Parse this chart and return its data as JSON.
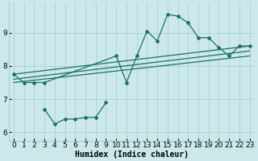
{
  "xlabel": "Humidex (Indice chaleur)",
  "background_color": "#cce8ea",
  "grid_color": "#9ecdd0",
  "line_color": "#1a7068",
  "xlim": [
    -0.5,
    23.5
  ],
  "ylim": [
    5.75,
    9.9
  ],
  "xticks": [
    0,
    1,
    2,
    3,
    4,
    5,
    6,
    7,
    8,
    9,
    10,
    11,
    12,
    13,
    14,
    15,
    16,
    17,
    18,
    19,
    20,
    21,
    22,
    23
  ],
  "yticks": [
    6,
    7,
    8,
    9
  ],
  "series1_x": [
    0,
    1,
    2,
    3,
    10,
    11,
    12,
    13,
    14,
    15,
    16,
    17,
    18,
    19,
    20,
    21,
    22,
    23
  ],
  "series1_y": [
    7.75,
    7.5,
    7.5,
    7.5,
    8.3,
    7.5,
    8.3,
    9.05,
    8.75,
    9.55,
    9.5,
    9.3,
    8.85,
    8.85,
    8.55,
    8.3,
    8.6,
    8.6
  ],
  "series2_x": [
    3,
    4,
    5,
    6,
    7,
    8,
    9
  ],
  "series2_y": [
    6.7,
    6.25,
    6.4,
    6.4,
    6.45,
    6.45,
    6.9
  ],
  "trend1_x": [
    0,
    23
  ],
  "trend1_y": [
    7.75,
    8.6
  ],
  "trend2_x": [
    0,
    23
  ],
  "trend2_y": [
    7.6,
    8.45
  ],
  "trend3_x": [
    0,
    23
  ],
  "trend3_y": [
    7.5,
    8.3
  ],
  "fontsize_label": 7,
  "fontsize_tick": 6.5
}
